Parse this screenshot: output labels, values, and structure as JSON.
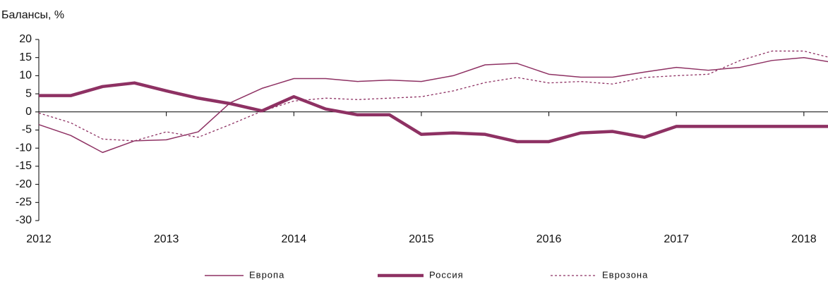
{
  "chart_data": {
    "type": "line",
    "y_label": "Балансы, %",
    "x": [
      2012,
      2012.25,
      2012.5,
      2012.75,
      2013,
      2013.25,
      2013.5,
      2013.75,
      2014,
      2014.25,
      2014.5,
      2014.75,
      2015,
      2015.25,
      2015.5,
      2015.75,
      2016,
      2016.25,
      2016.5,
      2016.75,
      2017,
      2017.25,
      2017.5,
      2017.75,
      2018,
      2018.25
    ],
    "xlim": [
      2012,
      2018.25
    ],
    "xticks": [
      2012,
      2013,
      2014,
      2015,
      2016,
      2017,
      2018
    ],
    "ylim": [
      -30,
      20
    ],
    "yticks": [
      20,
      15,
      10,
      5,
      0,
      -5,
      -10,
      -15,
      -20,
      -25,
      -30
    ],
    "legend": "bottom",
    "series": [
      {
        "name": "Европа",
        "color": "#8e3163",
        "width": 1.5,
        "dash": "none",
        "values": [
          -3.5,
          -6.5,
          -11.2,
          -8,
          -7.7,
          -5.5,
          2.5,
          6.5,
          9.2,
          9.2,
          8.4,
          8.8,
          8.4,
          10,
          13,
          13.4,
          10.4,
          9.6,
          9.6,
          11,
          12.3,
          11.5,
          12.3,
          14.2,
          15,
          13.5
        ]
      },
      {
        "name": "Россия",
        "color": "#8e3163",
        "width": 4.5,
        "dash": "none",
        "values": [
          4.5,
          4.5,
          7,
          8,
          5.8,
          3.8,
          2.3,
          0.3,
          4.2,
          0.8,
          -0.8,
          -0.8,
          -6.2,
          -5.8,
          -6.2,
          -8.2,
          -8.2,
          -5.8,
          -5.4,
          -7,
          -4,
          -4,
          -4,
          -4,
          -4,
          -4
        ]
      },
      {
        "name": "Еврозона",
        "color": "#8e3163",
        "width": 1.3,
        "dash": "3,3",
        "values": [
          -0.3,
          -3,
          -7.5,
          -8,
          -5.5,
          -7,
          -3.5,
          0.2,
          3,
          3.8,
          3.4,
          3.8,
          4.2,
          5.8,
          8.1,
          9.5,
          8,
          8.4,
          7.7,
          9.5,
          10,
          10.4,
          14.2,
          16.8,
          16.8,
          14.6
        ]
      }
    ]
  }
}
